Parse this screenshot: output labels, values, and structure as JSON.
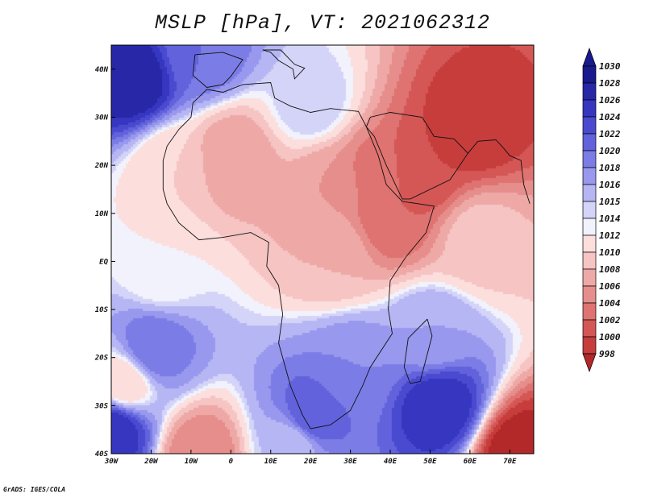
{
  "title": "MSLP [hPa], VT: 2021062312",
  "credit": "GrADS: IGES/COLA",
  "map": {
    "lon_range": [
      -30,
      76
    ],
    "lat_range": [
      -40,
      45
    ],
    "lon_ticks": [
      {
        "value": -30,
        "label": "30W"
      },
      {
        "value": -20,
        "label": "20W"
      },
      {
        "value": -10,
        "label": "10W"
      },
      {
        "value": 0,
        "label": "0"
      },
      {
        "value": 10,
        "label": "10E"
      },
      {
        "value": 20,
        "label": "20E"
      },
      {
        "value": 30,
        "label": "30E"
      },
      {
        "value": 40,
        "label": "40E"
      },
      {
        "value": 50,
        "label": "50E"
      },
      {
        "value": 60,
        "label": "60E"
      },
      {
        "value": 70,
        "label": "70E"
      }
    ],
    "lat_ticks": [
      {
        "value": 40,
        "label": "40N"
      },
      {
        "value": 30,
        "label": "30N"
      },
      {
        "value": 20,
        "label": "20N"
      },
      {
        "value": 10,
        "label": "10N"
      },
      {
        "value": 0,
        "label": "EQ"
      },
      {
        "value": -10,
        "label": "10S"
      },
      {
        "value": -20,
        "label": "20S"
      },
      {
        "value": -30,
        "label": "30S"
      },
      {
        "value": -40,
        "label": "40S"
      }
    ],
    "pressure_centers": [
      {
        "lon": -25,
        "lat": 38,
        "hpa": 1030
      },
      {
        "lon": -8,
        "lat": 44,
        "hpa": 1022
      },
      {
        "lon": 20,
        "lat": 33,
        "hpa": 1016
      },
      {
        "lon": -15,
        "lat": 20,
        "hpa": 1012
      },
      {
        "lon": 60,
        "lat": 28,
        "hpa": 1000
      },
      {
        "lon": 48,
        "lat": 19,
        "hpa": 1002
      },
      {
        "lon": 36,
        "lat": 18,
        "hpa": 1005
      },
      {
        "lon": 40,
        "lat": 10,
        "hpa": 1004
      },
      {
        "lon": 25,
        "lat": 16,
        "hpa": 1008
      },
      {
        "lon": 0,
        "lat": 22,
        "hpa": 1008
      },
      {
        "lon": 25,
        "lat": 2,
        "hpa": 1010
      },
      {
        "lon": -18,
        "lat": -2,
        "hpa": 1014
      },
      {
        "lon": 62,
        "lat": 5,
        "hpa": 1011
      },
      {
        "lon": -20,
        "lat": -18,
        "hpa": 1022
      },
      {
        "lon": -30,
        "lat": -35,
        "hpa": 1028
      },
      {
        "lon": -27,
        "lat": -25,
        "hpa": 1012
      },
      {
        "lon": 52,
        "lat": -30,
        "hpa": 1028
      },
      {
        "lon": 30,
        "lat": -22,
        "hpa": 1020
      },
      {
        "lon": 50,
        "lat": -15,
        "hpa": 1018
      },
      {
        "lon": 15,
        "lat": -38,
        "hpa": 1016
      },
      {
        "lon": 72,
        "lat": -40,
        "hpa": 998
      },
      {
        "lon": -8,
        "lat": -40,
        "hpa": 1006
      },
      {
        "lon": 20,
        "lat": -32,
        "hpa": 1024
      }
    ]
  },
  "colorbar": {
    "levels": [
      {
        "label": "1030",
        "color": "#1a1a8c"
      },
      {
        "label": "1028",
        "color": "#2727a8"
      },
      {
        "label": "1026",
        "color": "#3636c0"
      },
      {
        "label": "1024",
        "color": "#4a4ad0"
      },
      {
        "label": "1022",
        "color": "#6262dc"
      },
      {
        "label": "1020",
        "color": "#7c7ce6"
      },
      {
        "label": "1018",
        "color": "#9898ee"
      },
      {
        "label": "1016",
        "color": "#b6b6f4"
      },
      {
        "label": "1015",
        "color": "#d4d4f8"
      },
      {
        "label": "1014",
        "color": "#f2f2fc"
      },
      {
        "label": "1012",
        "color": "#fcdedd"
      },
      {
        "label": "1010",
        "color": "#f5c4c3"
      },
      {
        "label": "1008",
        "color": "#eea9a7"
      },
      {
        "label": "1006",
        "color": "#e68e8c"
      },
      {
        "label": "1004",
        "color": "#de7371"
      },
      {
        "label": "1002",
        "color": "#d45756"
      },
      {
        "label": "1000",
        "color": "#c63d3c"
      },
      {
        "label": "998",
        "color": "#b32828"
      }
    ]
  }
}
